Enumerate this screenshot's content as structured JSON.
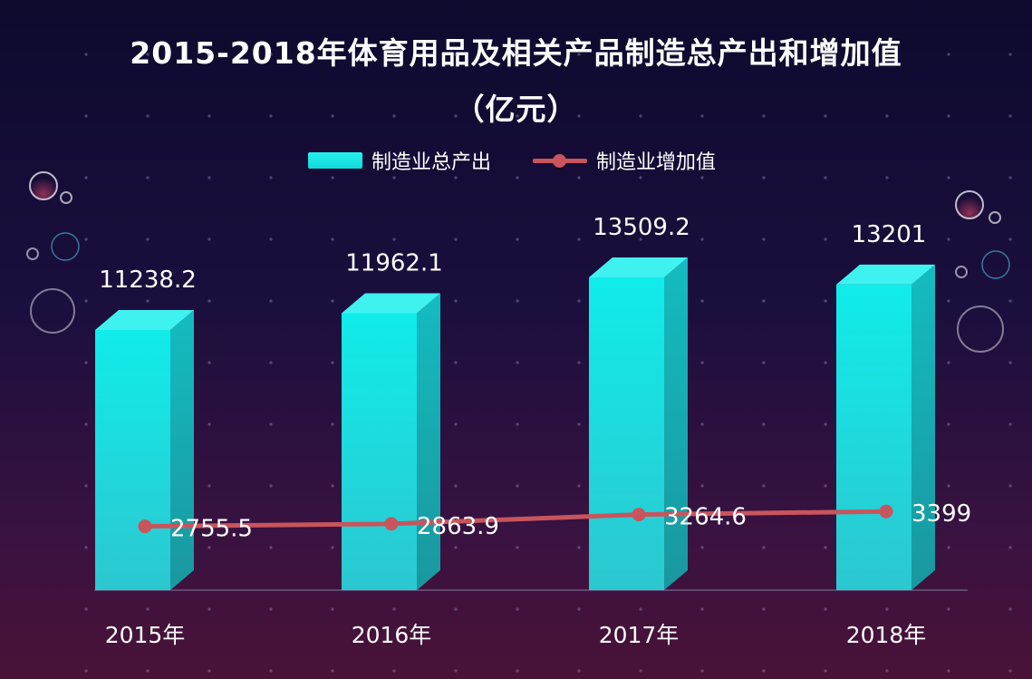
{
  "chart_data": {
    "type": "bar",
    "title_line1": "2015-2018年体育用品及相关产品制造总产出和增加值",
    "title_line2": "（亿元）",
    "categories": [
      "2015年",
      "2016年",
      "2017年",
      "2018年"
    ],
    "series": [
      {
        "name": "制造业总产出",
        "kind": "bar",
        "values": [
          11238.2,
          11962.1,
          13509.2,
          13201
        ],
        "labels": [
          "11238.2",
          "11962.1",
          "13509.2",
          "13201"
        ],
        "color": "#1ce6e4"
      },
      {
        "name": "制造业增加值",
        "kind": "line",
        "values": [
          2755.5,
          2863.9,
          3264.6,
          3399
        ],
        "labels": [
          "2755.5",
          "2863.9",
          "3264.6",
          "3399"
        ],
        "color": "#c9555c"
      }
    ],
    "ylim": [
      0,
      16000
    ],
    "grid": false,
    "legend_position": "top-center"
  },
  "colors": {
    "background_top": "#0d0a2e",
    "background_bottom": "#4a1238",
    "bar_front": "#1ce6e4",
    "line": "#c9555c",
    "text": "#ffffff"
  }
}
